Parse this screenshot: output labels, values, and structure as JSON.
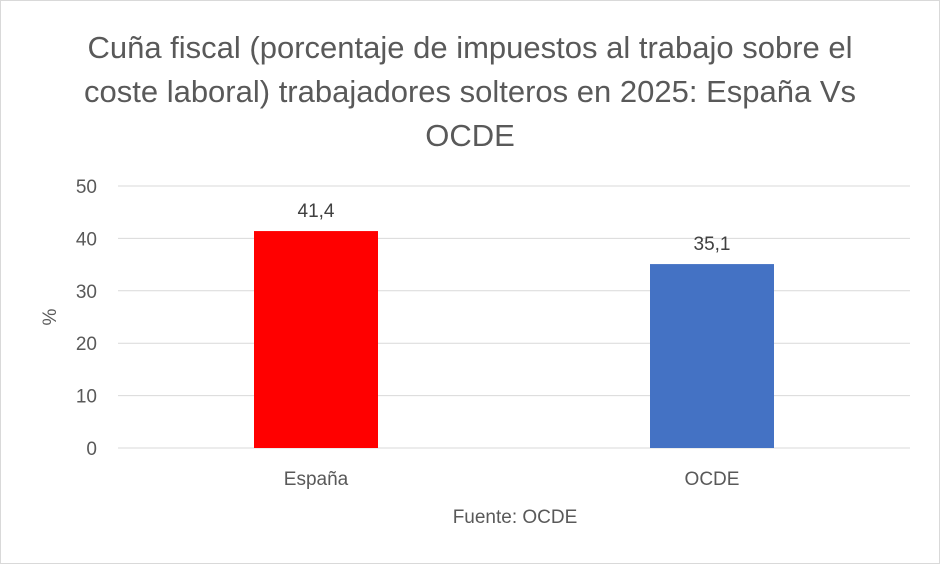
{
  "chart_data": {
    "type": "bar",
    "title": "Cuña fiscal (porcentaje de impuestos al trabajo sobre el coste laboral) trabajadores solteros en 2025: España Vs OCDE",
    "categories": [
      "España",
      "OCDE"
    ],
    "values": [
      41.4,
      35.1
    ],
    "data_labels": [
      "41,4",
      "35,1"
    ],
    "colors": [
      "#ff0000",
      "#4472c4"
    ],
    "ylabel": "%",
    "xlabel": "",
    "ylim": [
      0,
      50
    ],
    "yticks": [
      0,
      10,
      20,
      30,
      40,
      50
    ],
    "grid": true,
    "source": "Fuente: OCDE"
  }
}
